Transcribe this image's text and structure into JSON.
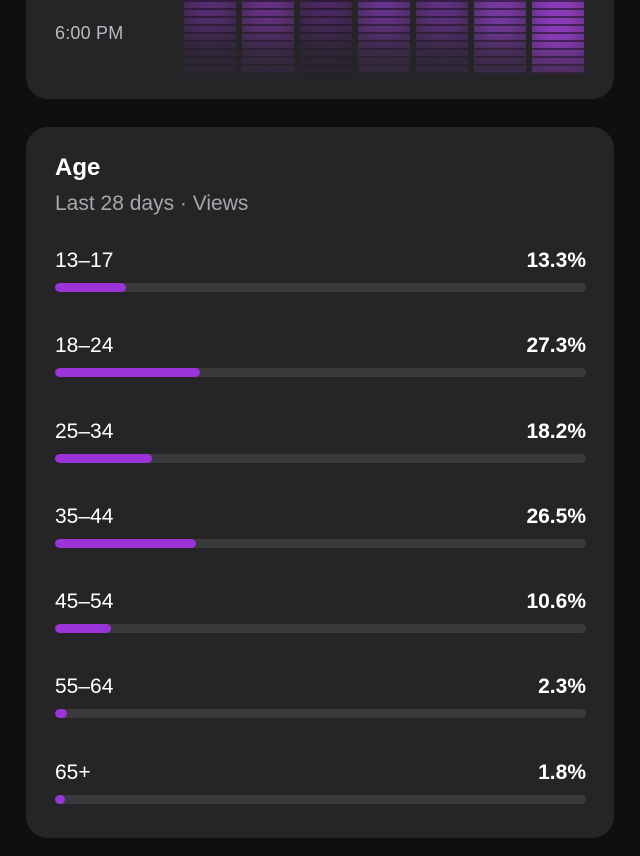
{
  "activity": {
    "time_label": "6:00 PM"
  },
  "age": {
    "title": "Age",
    "subtitle": "Last 28 days · Views",
    "rows": [
      {
        "label": "13–17",
        "percent": "13.3%",
        "value": 13.3
      },
      {
        "label": "18–24",
        "percent": "27.3%",
        "value": 27.3
      },
      {
        "label": "25–34",
        "percent": "18.2%",
        "value": 18.2
      },
      {
        "label": "35–44",
        "percent": "26.5%",
        "value": 26.5
      },
      {
        "label": "45–54",
        "percent": "10.6%",
        "value": 10.6
      },
      {
        "label": "55–64",
        "percent": "2.3%",
        "value": 2.3
      },
      {
        "label": "65+",
        "percent": "1.8%",
        "value": 1.8
      }
    ]
  },
  "colors": {
    "accent": "#9a34d8",
    "track": "#3a3a3d",
    "card": "#252527",
    "background": "#0f0f10"
  }
}
